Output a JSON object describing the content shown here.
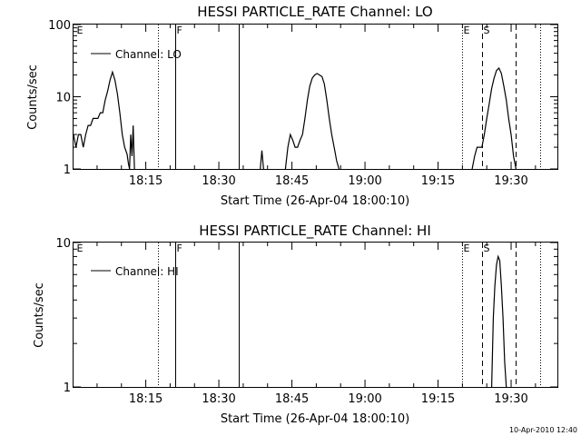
{
  "footer_timestamp": "10-Apr-2010 12:40",
  "chart_data": [
    {
      "type": "line",
      "title": "HESSI PARTICLE_RATE Channel: LO",
      "xlabel": "Start Time (26-Apr-04 18:00:10)",
      "ylabel": "Counts/sec",
      "yscale": "log",
      "xlim": [
        "18:00:10",
        "19:39:30"
      ],
      "ylim": [
        1,
        100
      ],
      "x_ticks": [
        "18:15",
        "18:30",
        "18:45",
        "19:00",
        "19:15",
        "19:30"
      ],
      "y_ticks": [
        "1",
        "10",
        "100"
      ],
      "legend": {
        "placement": "top-left",
        "entries": [
          "Channel: LO"
        ]
      },
      "markers": [
        {
          "label": "E",
          "time": "18:00:30",
          "style": "none"
        },
        {
          "label": "",
          "time": "18:17:30",
          "style": "dotted"
        },
        {
          "label": "F",
          "time": "18:21:00",
          "style": "solid"
        },
        {
          "label": "",
          "time": "18:34:00",
          "style": "solid"
        },
        {
          "label": "E",
          "time": "19:20:00",
          "style": "dotted"
        },
        {
          "label": "S",
          "time": "19:24:00",
          "style": "dashed"
        },
        {
          "label": "",
          "time": "19:31:00",
          "style": "dashed"
        },
        {
          "label": "",
          "time": "19:36:00",
          "style": "dotted"
        }
      ],
      "series": [
        {
          "name": "Channel: LO",
          "segments": [
            {
              "x": [
                "18:00:10",
                "18:00:40",
                "18:01:10",
                "18:01:40",
                "18:02:10",
                "18:02:40",
                "18:03:10",
                "18:03:40",
                "18:04:10",
                "18:04:40",
                "18:05:10",
                "18:05:40",
                "18:06:10",
                "18:06:40",
                "18:07:10",
                "18:07:40",
                "18:08:10",
                "18:08:40",
                "18:09:10",
                "18:09:40",
                "18:10:10",
                "18:10:40",
                "18:11:10",
                "18:11:25",
                "18:11:40"
              ],
              "y": [
                3,
                2,
                3,
                3,
                2,
                3,
                4,
                4,
                5,
                5,
                5,
                6,
                6,
                9,
                12,
                17,
                22,
                17,
                11,
                6,
                3,
                2,
                1.6,
                1.2,
                1
              ]
            },
            {
              "x": [
                "18:11:40",
                "18:11:55",
                "18:12:10",
                "18:12:25",
                "18:12:40"
              ],
              "y": [
                1,
                3,
                1.5,
                4,
                1
              ]
            },
            {
              "x": [
                "18:38:30",
                "18:38:50",
                "18:39:10"
              ],
              "y": [
                1,
                1.8,
                1
              ]
            },
            {
              "x": [
                "18:43:40",
                "18:44:10",
                "18:44:40",
                "18:45:10",
                "18:45:40",
                "18:46:10",
                "18:46:40",
                "18:47:10",
                "18:47:40",
                "18:48:10",
                "18:48:40",
                "18:49:10",
                "18:49:40",
                "18:50:10",
                "18:50:40",
                "18:51:10",
                "18:51:40",
                "18:52:10",
                "18:52:40",
                "18:53:10",
                "18:53:40",
                "18:54:10",
                "18:54:40"
              ],
              "y": [
                1,
                2,
                3,
                2.5,
                2,
                2,
                2.5,
                3,
                5,
                9,
                14,
                18,
                20,
                21,
                20,
                19,
                15,
                9,
                5,
                3,
                2,
                1.3,
                1
              ]
            },
            {
              "x": [
                "19:22:00",
                "19:22:30",
                "19:23:00",
                "19:23:30",
                "19:24:00",
                "19:24:30",
                "19:25:00",
                "19:25:30",
                "19:26:00",
                "19:26:30",
                "19:27:00",
                "19:27:30",
                "19:28:00",
                "19:28:30",
                "19:29:00",
                "19:29:30",
                "19:30:00",
                "19:30:30",
                "19:31:00"
              ],
              "y": [
                1,
                1.5,
                2,
                2,
                2,
                3,
                5,
                8,
                13,
                18,
                23,
                25,
                21,
                14,
                9,
                5,
                3,
                1.5,
                1
              ]
            }
          ]
        }
      ]
    },
    {
      "type": "line",
      "title": "HESSI PARTICLE_RATE Channel: HI",
      "xlabel": "Start Time (26-Apr-04 18:00:10)",
      "ylabel": "Counts/sec",
      "yscale": "log",
      "xlim": [
        "18:00:10",
        "19:39:30"
      ],
      "ylim": [
        1,
        10
      ],
      "x_ticks": [
        "18:15",
        "18:30",
        "18:45",
        "19:00",
        "19:15",
        "19:30"
      ],
      "y_ticks": [
        "1",
        "10"
      ],
      "legend": {
        "placement": "top-left",
        "entries": [
          "Channel: HI"
        ]
      },
      "markers": [
        {
          "label": "E",
          "time": "18:00:30",
          "style": "none"
        },
        {
          "label": "",
          "time": "18:17:30",
          "style": "dotted"
        },
        {
          "label": "F",
          "time": "18:21:00",
          "style": "solid"
        },
        {
          "label": "",
          "time": "18:34:00",
          "style": "solid"
        },
        {
          "label": "E",
          "time": "19:20:00",
          "style": "dotted"
        },
        {
          "label": "S",
          "time": "19:24:00",
          "style": "dashed"
        },
        {
          "label": "",
          "time": "19:31:00",
          "style": "dashed"
        },
        {
          "label": "",
          "time": "19:36:00",
          "style": "dotted"
        }
      ],
      "series": [
        {
          "name": "Channel: HI",
          "segments": [
            {
              "x": [
                "19:26:00",
                "19:26:20",
                "19:26:40",
                "19:27:00",
                "19:27:20",
                "19:27:40",
                "19:28:00",
                "19:28:20",
                "19:28:40",
                "19:29:00"
              ],
              "y": [
                1,
                3,
                5,
                7,
                8,
                7.5,
                5,
                3,
                1.5,
                1
              ]
            }
          ]
        }
      ]
    }
  ]
}
